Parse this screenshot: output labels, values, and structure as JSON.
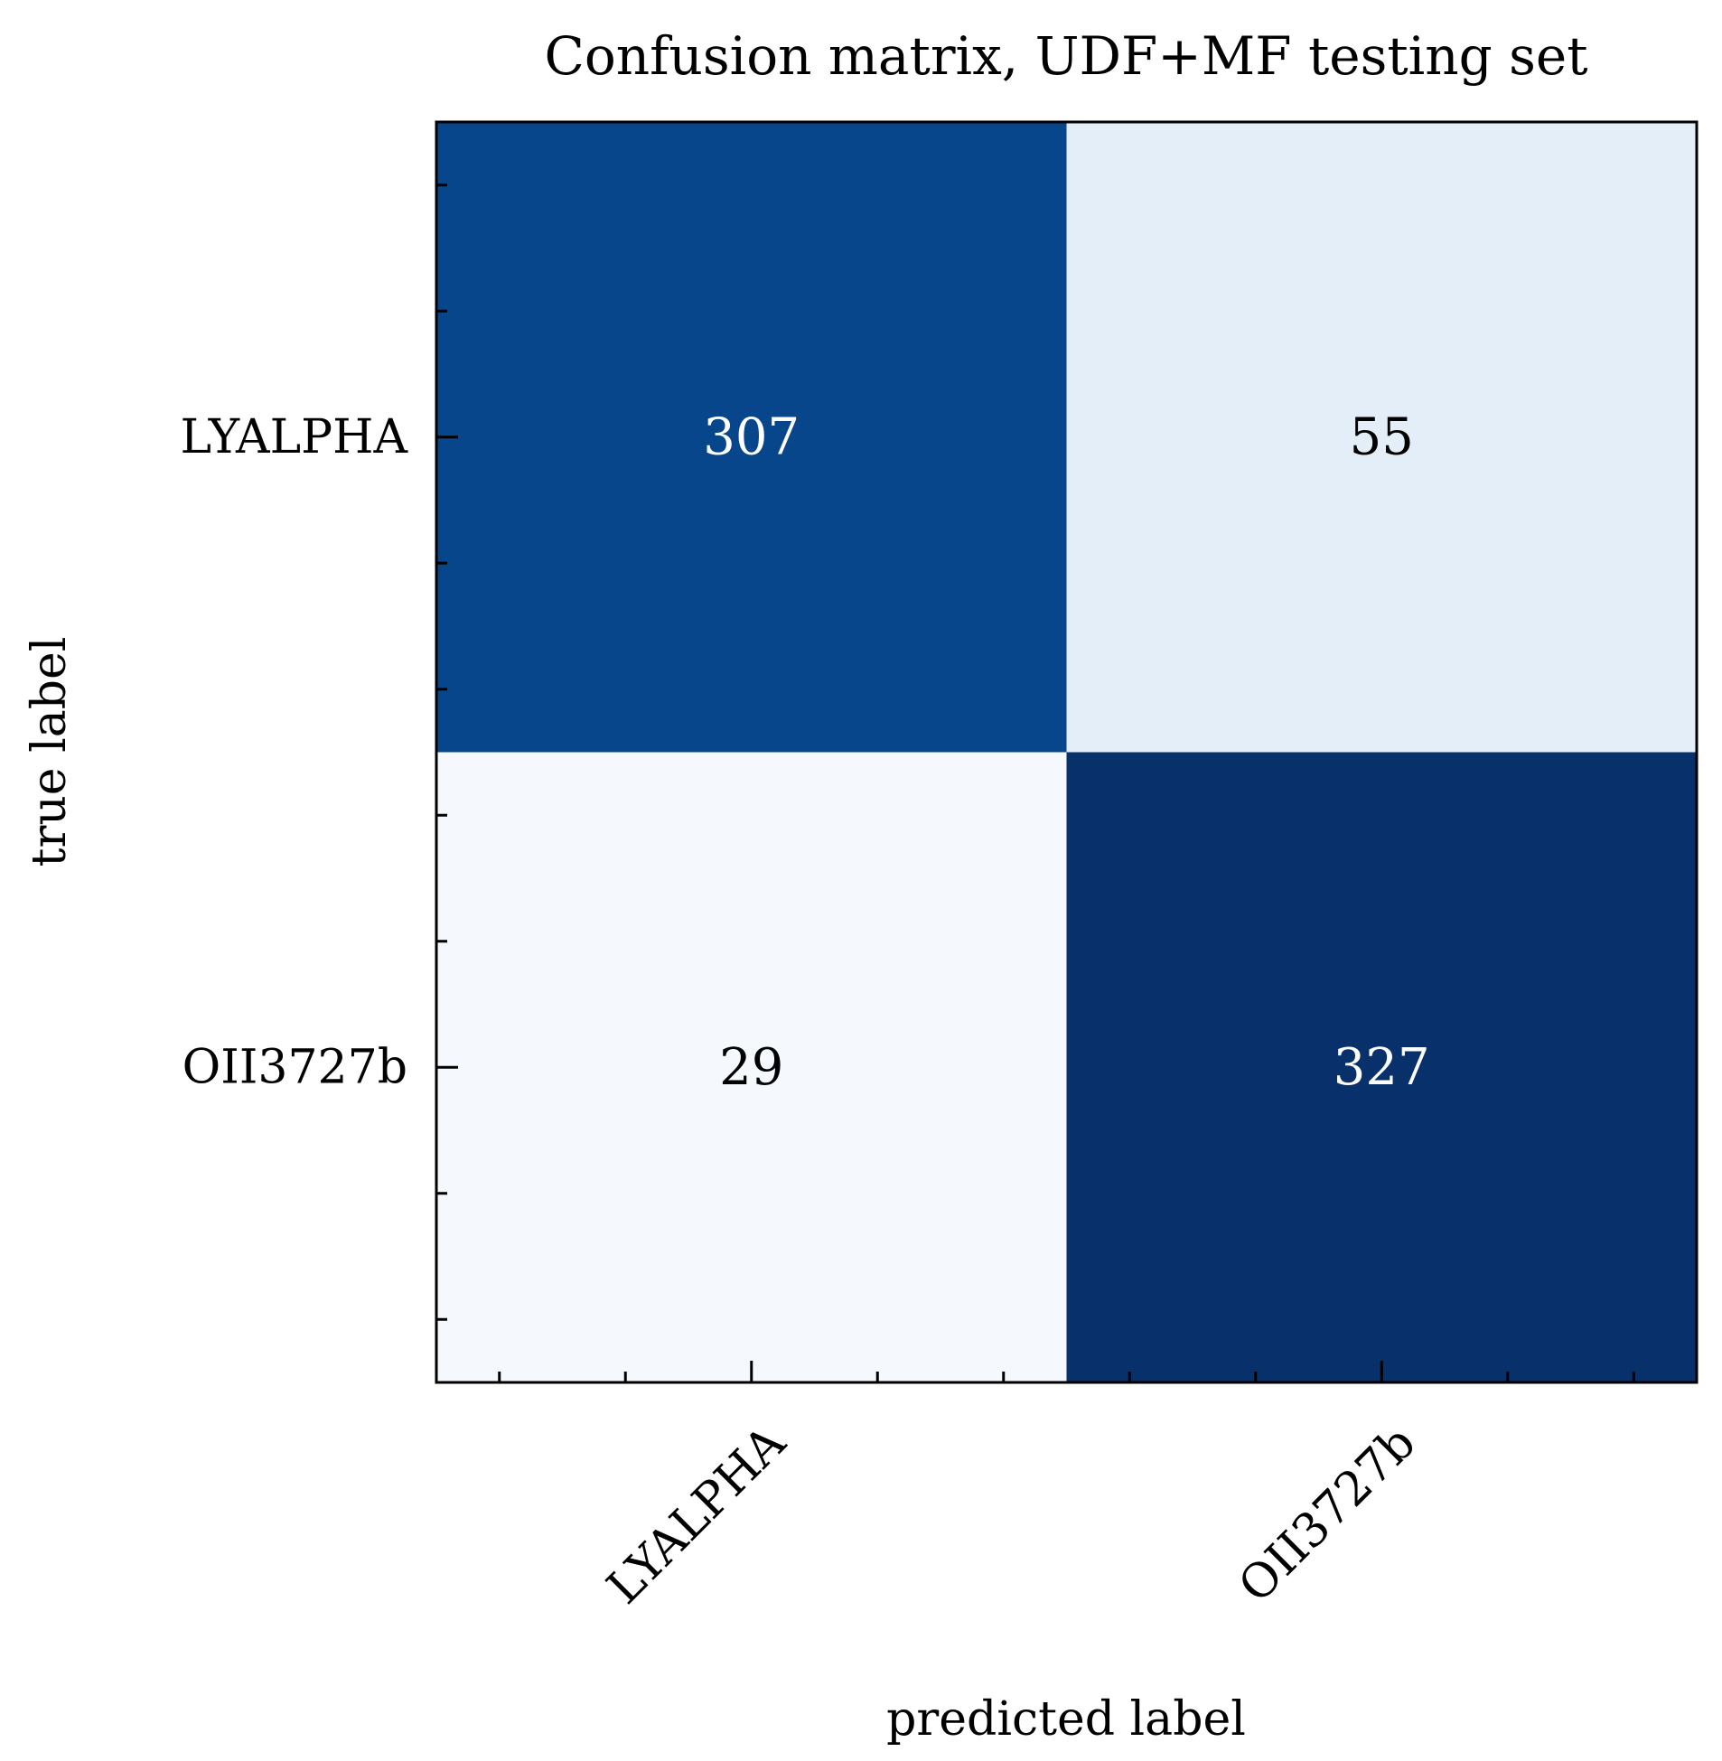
{
  "chart_data": {
    "type": "heatmap",
    "title": "Confusion matrix, UDF+MF testing set",
    "xlabel": "predicted label",
    "ylabel": "true label",
    "x_categories": [
      "LYALPHA",
      "OII3727b"
    ],
    "y_categories": [
      "LYALPHA",
      "OII3727b"
    ],
    "values": [
      [
        307,
        55
      ],
      [
        29,
        327
      ]
    ],
    "colormap": "Blues",
    "colors": {
      "cell_0_0": "#08468b",
      "cell_0_1": "#e3eef8",
      "cell_1_0": "#f5f9fe",
      "cell_1_1": "#08306b",
      "dark_text": "#000000",
      "light_text": "#ffffff"
    },
    "grid": false,
    "minor_ticks": true
  }
}
